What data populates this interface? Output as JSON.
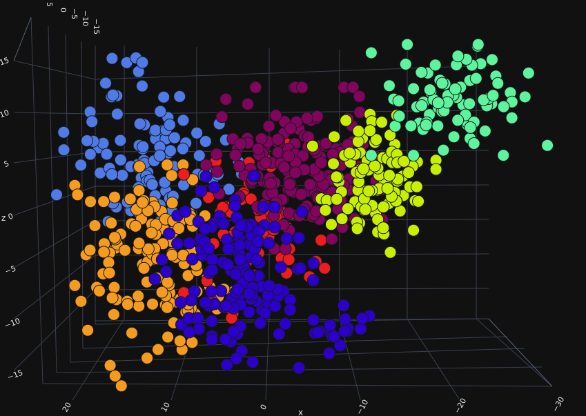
{
  "chart_data": {
    "type": "scatter3d",
    "title": "",
    "axes": {
      "x": {
        "title": "x",
        "ticks": [
          "20",
          "10",
          "0",
          "−10",
          "−20",
          "−30"
        ],
        "range": [
          25,
          -32
        ]
      },
      "y": {
        "title": "",
        "ticks": [
          "5",
          "0",
          "−5",
          "−10",
          "−15"
        ],
        "range": [
          7,
          -17
        ]
      },
      "z": {
        "title": "z",
        "ticks": [
          "15",
          "10",
          "5",
          "0",
          "−5",
          "−10",
          "−15"
        ],
        "range": [
          -18,
          18
        ]
      }
    },
    "grid": true,
    "legend": "none",
    "series": [
      {
        "name": "",
        "color": "#4f7be8",
        "clusters": [
          {
            "x": 12,
            "z": 6,
            "spread": [
              4.2,
              3.0
            ],
            "n": 95
          },
          {
            "x": 13.5,
            "z": 14.5,
            "spread": [
              1.0,
              0.4
            ],
            "n": 5
          }
        ]
      },
      {
        "name": "",
        "color": "#f59c1f",
        "clusters": [
          {
            "x": 11.5,
            "z": -4,
            "spread": [
              3.6,
              4.0
            ],
            "n": 120
          },
          {
            "x": 15.5,
            "z": -11,
            "spread": [
              1.5,
              2.5
            ],
            "n": 10
          }
        ]
      },
      {
        "name": "",
        "color": "#ee1c1c",
        "clusters": [
          {
            "x": 1.5,
            "z": -1,
            "spread": [
              3.2,
              4.0
            ],
            "n": 55
          }
        ]
      },
      {
        "name": "",
        "color": "#82045f",
        "clusters": [
          {
            "x": -2.5,
            "z": 4.5,
            "spread": [
              4.0,
              3.5
            ],
            "n": 160
          }
        ]
      },
      {
        "name": "",
        "color": "#2c00cc",
        "clusters": [
          {
            "x": 3.5,
            "z": -5.5,
            "spread": [
              3.6,
              4.2
            ],
            "n": 140
          },
          {
            "x": -6.5,
            "z": -11.5,
            "spread": [
              1.6,
              1.6
            ],
            "n": 18
          }
        ]
      },
      {
        "name": "",
        "color": "#c9ef00",
        "clusters": [
          {
            "x": -10.5,
            "z": 3.5,
            "spread": [
              2.8,
              3.2
            ],
            "n": 100
          }
        ]
      },
      {
        "name": "",
        "color": "#5cf59d",
        "clusters": [
          {
            "x": -19,
            "z": 11,
            "spread": [
              4.0,
              2.4
            ],
            "n": 80
          }
        ]
      }
    ]
  }
}
